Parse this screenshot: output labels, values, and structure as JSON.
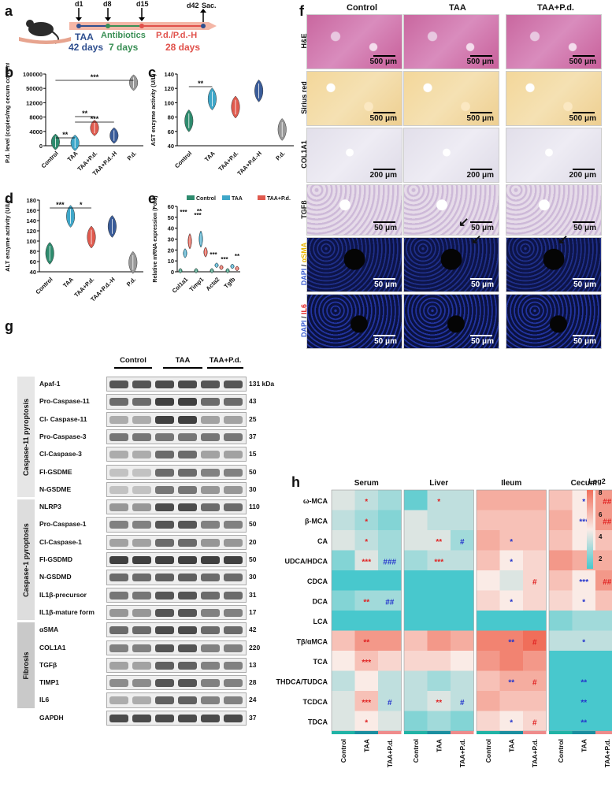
{
  "panel_labels": {
    "a": "a",
    "b": "b",
    "c": "c",
    "d": "d",
    "e": "e",
    "f": "f",
    "g": "g",
    "h": "h"
  },
  "timeline": {
    "days": [
      "d1",
      "d8",
      "d15",
      "d42"
    ],
    "sac": "Sac.",
    "taa": "TAA",
    "taa_days": "42 days",
    "abx": "Antibiotics",
    "abx_days": "7 days",
    "pd": "P.d./P.d.-H",
    "pd_days": "28 days",
    "colors": {
      "taa": "#2f4f8f",
      "abx": "#3a8f55",
      "pd": "#e0504a"
    }
  },
  "violin_colors": {
    "Control": "#2e8b6e",
    "TAA": "#3fa7c9",
    "TAA+P.d.": "#e05a4e",
    "TAA+P.d.-H": "#3a5c99",
    "P.d.": "#999999"
  },
  "chart_data": [
    {
      "type": "violin",
      "panel": "b",
      "ylabel": "P.d. level (copies/mg cecum contents)",
      "yticks": [
        "0",
        "4000",
        "8000",
        "12000",
        "50000",
        "100000"
      ],
      "categories": [
        "Control",
        "TAA",
        "TAA+P.d.",
        "TAA+P.d.-H",
        "P.d."
      ],
      "values": [
        1200,
        900,
        5600,
        3200,
        68000
      ],
      "sig": [
        "**",
        "***",
        "**",
        "***"
      ]
    },
    {
      "type": "violin",
      "panel": "c",
      "ylabel": "AST enzyme activity (U/L)",
      "yticks": [
        "40",
        "60",
        "80",
        "100",
        "120",
        "140"
      ],
      "ylim": [
        30,
        145
      ],
      "categories": [
        "Control",
        "TAA",
        "TAA+P.d.",
        "TAA+P.d.-H",
        "P.d."
      ],
      "values": [
        70,
        105,
        92,
        118,
        56
      ],
      "sig": [
        "**"
      ]
    },
    {
      "type": "violin",
      "panel": "d",
      "ylabel": "ALT enzyme activity (U/L)",
      "yticks": [
        "40",
        "60",
        "80",
        "100",
        "120",
        "140",
        "160",
        "180"
      ],
      "ylim": [
        30,
        185
      ],
      "categories": [
        "Control",
        "TAA",
        "TAA+P.d.",
        "TAA+P.d.-H",
        "P.d."
      ],
      "values": [
        70,
        150,
        105,
        128,
        50
      ],
      "sig": [
        "***",
        "*"
      ]
    },
    {
      "type": "violin",
      "panel": "e",
      "ylabel": "Relative mRNA expression (Fold)",
      "yticks": [
        "0",
        "10",
        "20",
        "30",
        "40",
        "50",
        "60"
      ],
      "ylim": [
        0,
        60
      ],
      "categories": [
        "Col1a1",
        "Timp1",
        "Acta2",
        "Tgfb"
      ],
      "series": [
        {
          "name": "Control",
          "values": [
            1,
            1,
            1,
            1
          ]
        },
        {
          "name": "TAA",
          "values": [
            17,
            30,
            6,
            5
          ]
        },
        {
          "name": "TAA+P.d.",
          "values": [
            28,
            18,
            4,
            3
          ]
        }
      ],
      "sig": [
        "***",
        "***",
        "**",
        "***",
        "***",
        "**"
      ]
    },
    {
      "type": "heatmap",
      "panel": "h",
      "groups": [
        "Serum",
        "Liver",
        "Ileum",
        "Cecum"
      ],
      "columns": [
        "Control",
        "TAA",
        "TAA+P.d."
      ],
      "rows": [
        "ω-MCA",
        "β-MCA",
        "CA",
        "UDCA/HDCA",
        "CDCA",
        "DCA",
        "LCA",
        "Tβ/αMCA",
        "TCA",
        "THDCA/TUDCA",
        "TCDCA",
        "TDCA"
      ],
      "legend_title": "Log2",
      "legend_ticks": [
        "8",
        "6",
        "4",
        "2"
      ],
      "values": {
        "Serum": [
          [
            4.5,
            4,
            3.5
          ],
          [
            4,
            3.5,
            3
          ],
          [
            4.5,
            4,
            3.5
          ],
          [
            3,
            4.5,
            3.5
          ],
          [
            2,
            2,
            2
          ],
          [
            3,
            3.5,
            3.5
          ],
          [
            2,
            2,
            2
          ],
          [
            6,
            7,
            7
          ],
          [
            5,
            6,
            5.5
          ],
          [
            4,
            5,
            4
          ],
          [
            4.5,
            6,
            4
          ],
          [
            4.5,
            5,
            4.5
          ]
        ],
        "Liver": [
          [
            2.5,
            4,
            4
          ],
          [
            4.5,
            4,
            4
          ],
          [
            4.5,
            4.5,
            3.5
          ],
          [
            3.5,
            4,
            4
          ],
          [
            2,
            2,
            2
          ],
          [
            2,
            2,
            2
          ],
          [
            2,
            2,
            2
          ],
          [
            6,
            7,
            6.5
          ],
          [
            5.5,
            5.5,
            5
          ],
          [
            4,
            3.5,
            4
          ],
          [
            4,
            4.5,
            4
          ],
          [
            3,
            3.5,
            3
          ]
        ],
        "Ileum": [
          [
            6.5,
            6.5,
            6.5
          ],
          [
            6,
            6,
            6
          ],
          [
            6.5,
            6,
            6
          ],
          [
            6,
            5,
            5.5
          ],
          [
            5,
            4.5,
            5.5
          ],
          [
            5.5,
            5,
            5.5
          ],
          [
            2,
            2,
            2
          ],
          [
            7.5,
            7.5,
            8
          ],
          [
            7,
            7.5,
            7
          ],
          [
            6,
            6.5,
            6.5
          ],
          [
            6.5,
            6,
            6
          ],
          [
            5.5,
            5,
            5.5
          ]
        ],
        "Cecum": [
          [
            6,
            5,
            7
          ],
          [
            6.5,
            5,
            7
          ],
          [
            6,
            5,
            6
          ],
          [
            7,
            6.5,
            6.5
          ],
          [
            6,
            5,
            7
          ],
          [
            5.5,
            5,
            6
          ],
          [
            3,
            3.5,
            3.5
          ],
          [
            4,
            4,
            4
          ],
          [
            2,
            2,
            2
          ],
          [
            2,
            2,
            2
          ],
          [
            2,
            2,
            2
          ],
          [
            2,
            2,
            2
          ]
        ]
      },
      "stars": [
        {
          "g": "Serum",
          "r": 0,
          "c": 1,
          "t": "*",
          "k": "red"
        },
        {
          "g": "Serum",
          "r": 1,
          "c": 1,
          "t": "*",
          "k": "red"
        },
        {
          "g": "Serum",
          "r": 2,
          "c": 1,
          "t": "*",
          "k": "red"
        },
        {
          "g": "Serum",
          "r": 3,
          "c": 1,
          "t": "***",
          "k": "red"
        },
        {
          "g": "Serum",
          "r": 3,
          "c": 2,
          "t": "###",
          "k": "blue"
        },
        {
          "g": "Serum",
          "r": 5,
          "c": 1,
          "t": "**",
          "k": "red"
        },
        {
          "g": "Serum",
          "r": 5,
          "c": 2,
          "t": "##",
          "k": "blue"
        },
        {
          "g": "Serum",
          "r": 7,
          "c": 1,
          "t": "**",
          "k": "red"
        },
        {
          "g": "Serum",
          "r": 8,
          "c": 1,
          "t": "***",
          "k": "red"
        },
        {
          "g": "Serum",
          "r": 10,
          "c": 1,
          "t": "***",
          "k": "red"
        },
        {
          "g": "Serum",
          "r": 10,
          "c": 2,
          "t": "#",
          "k": "blue"
        },
        {
          "g": "Serum",
          "r": 11,
          "c": 1,
          "t": "*",
          "k": "red"
        },
        {
          "g": "Liver",
          "r": 0,
          "c": 1,
          "t": "*",
          "k": "red"
        },
        {
          "g": "Liver",
          "r": 2,
          "c": 1,
          "t": "**",
          "k": "red"
        },
        {
          "g": "Liver",
          "r": 2,
          "c": 2,
          "t": "#",
          "k": "blue"
        },
        {
          "g": "Liver",
          "r": 3,
          "c": 1,
          "t": "***",
          "k": "red"
        },
        {
          "g": "Liver",
          "r": 10,
          "c": 1,
          "t": "**",
          "k": "red"
        },
        {
          "g": "Liver",
          "r": 10,
          "c": 2,
          "t": "#",
          "k": "blue"
        },
        {
          "g": "Ileum",
          "r": 2,
          "c": 1,
          "t": "*",
          "k": "blue"
        },
        {
          "g": "Ileum",
          "r": 3,
          "c": 1,
          "t": "*",
          "k": "blue"
        },
        {
          "g": "Ileum",
          "r": 4,
          "c": 2,
          "t": "#",
          "k": "red"
        },
        {
          "g": "Ileum",
          "r": 5,
          "c": 1,
          "t": "*",
          "k": "blue"
        },
        {
          "g": "Ileum",
          "r": 7,
          "c": 1,
          "t": "**",
          "k": "blue"
        },
        {
          "g": "Ileum",
          "r": 7,
          "c": 2,
          "t": "#",
          "k": "red"
        },
        {
          "g": "Ileum",
          "r": 9,
          "c": 1,
          "t": "**",
          "k": "blue"
        },
        {
          "g": "Ileum",
          "r": 9,
          "c": 2,
          "t": "#",
          "k": "red"
        },
        {
          "g": "Ileum",
          "r": 11,
          "c": 1,
          "t": "*",
          "k": "blue"
        },
        {
          "g": "Ileum",
          "r": 11,
          "c": 2,
          "t": "#",
          "k": "red"
        },
        {
          "g": "Cecum",
          "r": 0,
          "c": 1,
          "t": "*",
          "k": "blue"
        },
        {
          "g": "Cecum",
          "r": 0,
          "c": 2,
          "t": "##",
          "k": "red"
        },
        {
          "g": "Cecum",
          "r": 1,
          "c": 1,
          "t": "***",
          "k": "blue"
        },
        {
          "g": "Cecum",
          "r": 1,
          "c": 2,
          "t": "##",
          "k": "red"
        },
        {
          "g": "Cecum",
          "r": 4,
          "c": 1,
          "t": "***",
          "k": "blue"
        },
        {
          "g": "Cecum",
          "r": 4,
          "c": 2,
          "t": "##",
          "k": "red"
        },
        {
          "g": "Cecum",
          "r": 5,
          "c": 1,
          "t": "*",
          "k": "blue"
        },
        {
          "g": "Cecum",
          "r": 7,
          "c": 1,
          "t": "*",
          "k": "blue"
        },
        {
          "g": "Cecum",
          "r": 9,
          "c": 1,
          "t": "**",
          "k": "blue"
        },
        {
          "g": "Cecum",
          "r": 10,
          "c": 1,
          "t": "**",
          "k": "blue"
        },
        {
          "g": "Cecum",
          "r": 11,
          "c": 1,
          "t": "**",
          "k": "blue"
        }
      ]
    }
  ],
  "histology": {
    "columns": [
      "Control",
      "TAA",
      "TAA+P.d."
    ],
    "rows": [
      {
        "label": "H&E",
        "scale": "500 μm",
        "style": "he"
      },
      {
        "label": "Sirius red",
        "scale": "500 μm",
        "style": "sr"
      },
      {
        "label": "COL1A1",
        "scale": "200 μm",
        "style": "col"
      },
      {
        "label": "TGFβ",
        "scale": "50 μm",
        "style": "tgf"
      },
      {
        "label_a": "DAPI",
        "label_b": "αSMA",
        "scale": "50 μm",
        "style": "ifa"
      },
      {
        "label_a": "DAPI",
        "label_b": "IL6",
        "scale": "50 μm",
        "style": "ifr"
      }
    ]
  },
  "western": {
    "groups": [
      "Control",
      "TAA",
      "TAA+P.d."
    ],
    "sections": [
      "Caspase-11 pyroptosis",
      "Caspase-1 pyroptosis",
      "Fibrosis"
    ],
    "rows": [
      {
        "name": "Apaf-1",
        "kda": "131 kDa",
        "int": [
          0.7,
          0.7,
          0.75,
          0.75,
          0.7,
          0.7
        ]
      },
      {
        "name": "Pro-Caspase-11",
        "kda": "43",
        "int": [
          0.6,
          0.6,
          0.8,
          0.8,
          0.6,
          0.6
        ]
      },
      {
        "name": "Cl- Caspase-11",
        "kda": "25",
        "int": [
          0.3,
          0.3,
          0.8,
          0.8,
          0.35,
          0.35
        ]
      },
      {
        "name": "Pro-Caspase-3",
        "kda": "37",
        "int": [
          0.55,
          0.55,
          0.55,
          0.55,
          0.55,
          0.55
        ]
      },
      {
        "name": "Cl-Caspase-3",
        "kda": "15",
        "int": [
          0.3,
          0.3,
          0.6,
          0.6,
          0.35,
          0.35
        ]
      },
      {
        "name": "Fl-GSDME",
        "kda": "50",
        "int": [
          0.2,
          0.2,
          0.6,
          0.6,
          0.5,
          0.5
        ]
      },
      {
        "name": "N-GSDME",
        "kda": "30",
        "int": [
          0.2,
          0.2,
          0.55,
          0.55,
          0.4,
          0.4
        ]
      },
      {
        "name": "NLRP3",
        "kda": "110",
        "int": [
          0.4,
          0.4,
          0.75,
          0.75,
          0.6,
          0.6
        ]
      },
      {
        "name": "Pro-Caspase-1",
        "kda": "50",
        "int": [
          0.5,
          0.5,
          0.7,
          0.7,
          0.5,
          0.5
        ]
      },
      {
        "name": "Cl-Caspase-1",
        "kda": "20",
        "int": [
          0.35,
          0.35,
          0.6,
          0.6,
          0.4,
          0.4
        ]
      },
      {
        "name": "Fl-GSDMD",
        "kda": "50",
        "int": [
          0.8,
          0.8,
          0.8,
          0.8,
          0.8,
          0.8
        ]
      },
      {
        "name": "N-GSDMD",
        "kda": "30",
        "int": [
          0.6,
          0.6,
          0.65,
          0.65,
          0.6,
          0.6
        ]
      },
      {
        "name": "IL1β-precursor",
        "kda": "31",
        "int": [
          0.55,
          0.55,
          0.7,
          0.7,
          0.6,
          0.6
        ]
      },
      {
        "name": "IL1β-mature form",
        "kda": "17",
        "int": [
          0.4,
          0.4,
          0.7,
          0.7,
          0.5,
          0.5
        ]
      },
      {
        "name": "αSMA",
        "kda": "42",
        "int": [
          0.6,
          0.6,
          0.75,
          0.75,
          0.6,
          0.6
        ]
      },
      {
        "name": "COL1A1",
        "kda": "220",
        "int": [
          0.5,
          0.5,
          0.7,
          0.7,
          0.5,
          0.5
        ]
      },
      {
        "name": "TGFβ",
        "kda": "13",
        "int": [
          0.35,
          0.35,
          0.65,
          0.65,
          0.5,
          0.5
        ]
      },
      {
        "name": "TIMP1",
        "kda": "28",
        "int": [
          0.45,
          0.45,
          0.7,
          0.7,
          0.5,
          0.5
        ]
      },
      {
        "name": "IL6",
        "kda": "24",
        "int": [
          0.3,
          0.3,
          0.65,
          0.65,
          0.5,
          0.5
        ]
      },
      {
        "name": "GAPDH",
        "kda": "37",
        "int": [
          0.75,
          0.75,
          0.75,
          0.75,
          0.75,
          0.75
        ]
      }
    ]
  }
}
